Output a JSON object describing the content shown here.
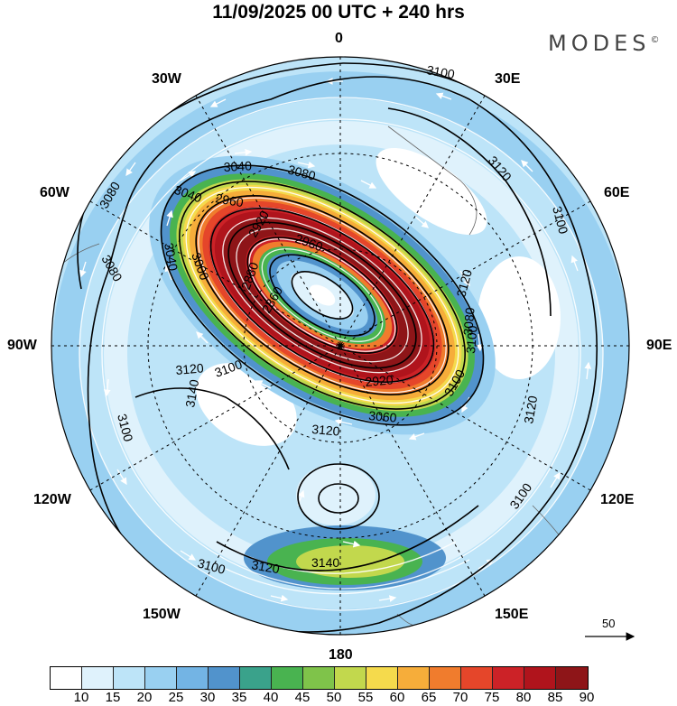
{
  "title": "11/09/2025  00 UTC  + 240 hrs",
  "brand": "MODES",
  "brand_mark": "©",
  "longitude_labels": {
    "lon_0": "0",
    "lon_30e": "30E",
    "lon_60e": "60E",
    "lon_90e": "90E",
    "lon_120e": "120E",
    "lon_150e": "150E",
    "lon_180": "180",
    "lon_150w": "150W",
    "lon_120w": "120W",
    "lon_90w": "90W",
    "lon_60w": "60W",
    "lon_30w": "30W"
  },
  "contour_labels": [
    "3100",
    "3120",
    "3100",
    "3080",
    "3080",
    "3040",
    "3040",
    "3080",
    "2960",
    "3040",
    "3000",
    "2960",
    "2920",
    "2880",
    "2860",
    "3120",
    "3100",
    "3140",
    "3100",
    "3120",
    "3060",
    "2920",
    "3100",
    "3120",
    "3100",
    "3140",
    "3120",
    "3100",
    "3100",
    "3120",
    "3080"
  ],
  "wind_reference": {
    "value": "50"
  },
  "legend": {
    "ticks": [
      "10",
      "15",
      "20",
      "25",
      "30",
      "35",
      "40",
      "45",
      "50",
      "55",
      "60",
      "65",
      "70",
      "75",
      "80",
      "85",
      "90"
    ],
    "colors": [
      "#ffffff",
      "#dff2fc",
      "#bde4f8",
      "#99d0f1",
      "#73b4e4",
      "#5193cc",
      "#3aa28b",
      "#49b350",
      "#7fc34a",
      "#c2d84d",
      "#f5da4c",
      "#f6ad3a",
      "#f07c2d",
      "#e5462a",
      "#cc2227",
      "#b0141c",
      "#8e1518"
    ]
  }
}
